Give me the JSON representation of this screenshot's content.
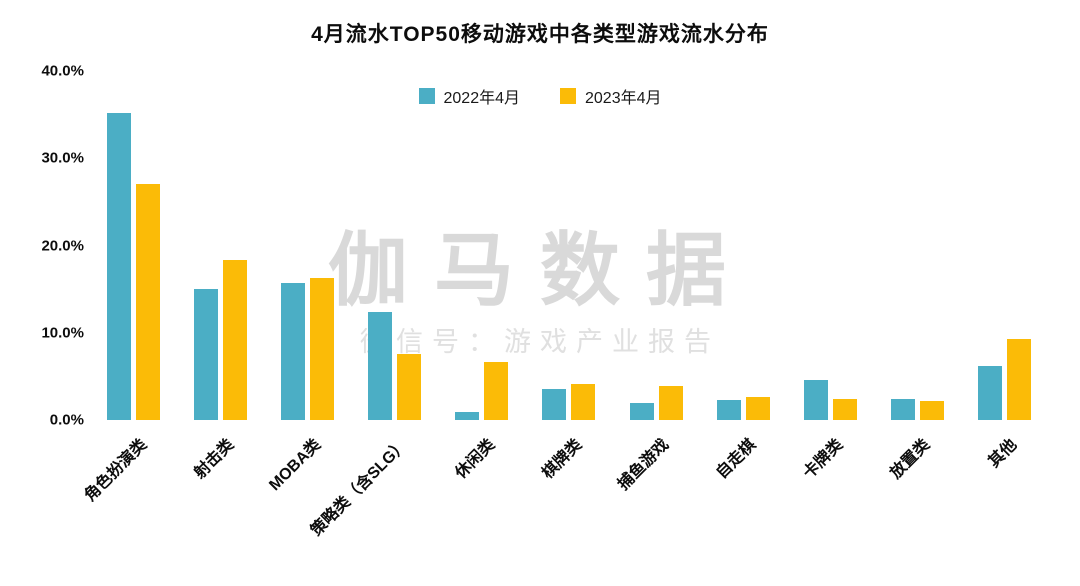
{
  "chart_data": {
    "type": "bar",
    "title": "4月流水TOP50移动游戏中各类型游戏流水分布",
    "categories": [
      "角色扮演类",
      "射击类",
      "MOBA类",
      "策略类（含SLG）",
      "休闲类",
      "棋牌类",
      "捕鱼游戏",
      "自走棋",
      "卡牌类",
      "放置类",
      "其他"
    ],
    "series": [
      {
        "name": "2022年4月",
        "color": "#4BAEC5",
        "values": [
          35.2,
          15.0,
          15.7,
          12.4,
          0.9,
          3.6,
          1.9,
          2.3,
          4.6,
          2.4,
          6.2
        ]
      },
      {
        "name": "2023年4月",
        "color": "#FBBB07",
        "values": [
          27.0,
          18.3,
          16.3,
          7.6,
          6.7,
          4.1,
          3.9,
          2.6,
          2.4,
          2.2,
          9.3
        ]
      }
    ],
    "xlabel": "",
    "ylabel": "",
    "ylim": [
      0,
      40
    ],
    "yticks": [
      "40.0%",
      "30.0%",
      "20.0%",
      "10.0%",
      "0.0%"
    ],
    "ytick_values": [
      40,
      30,
      20,
      10,
      0
    ],
    "legend_position": "top",
    "grid": false
  },
  "watermark": {
    "line1": "伽马数据",
    "line2": "微信号：游戏产业报告"
  }
}
